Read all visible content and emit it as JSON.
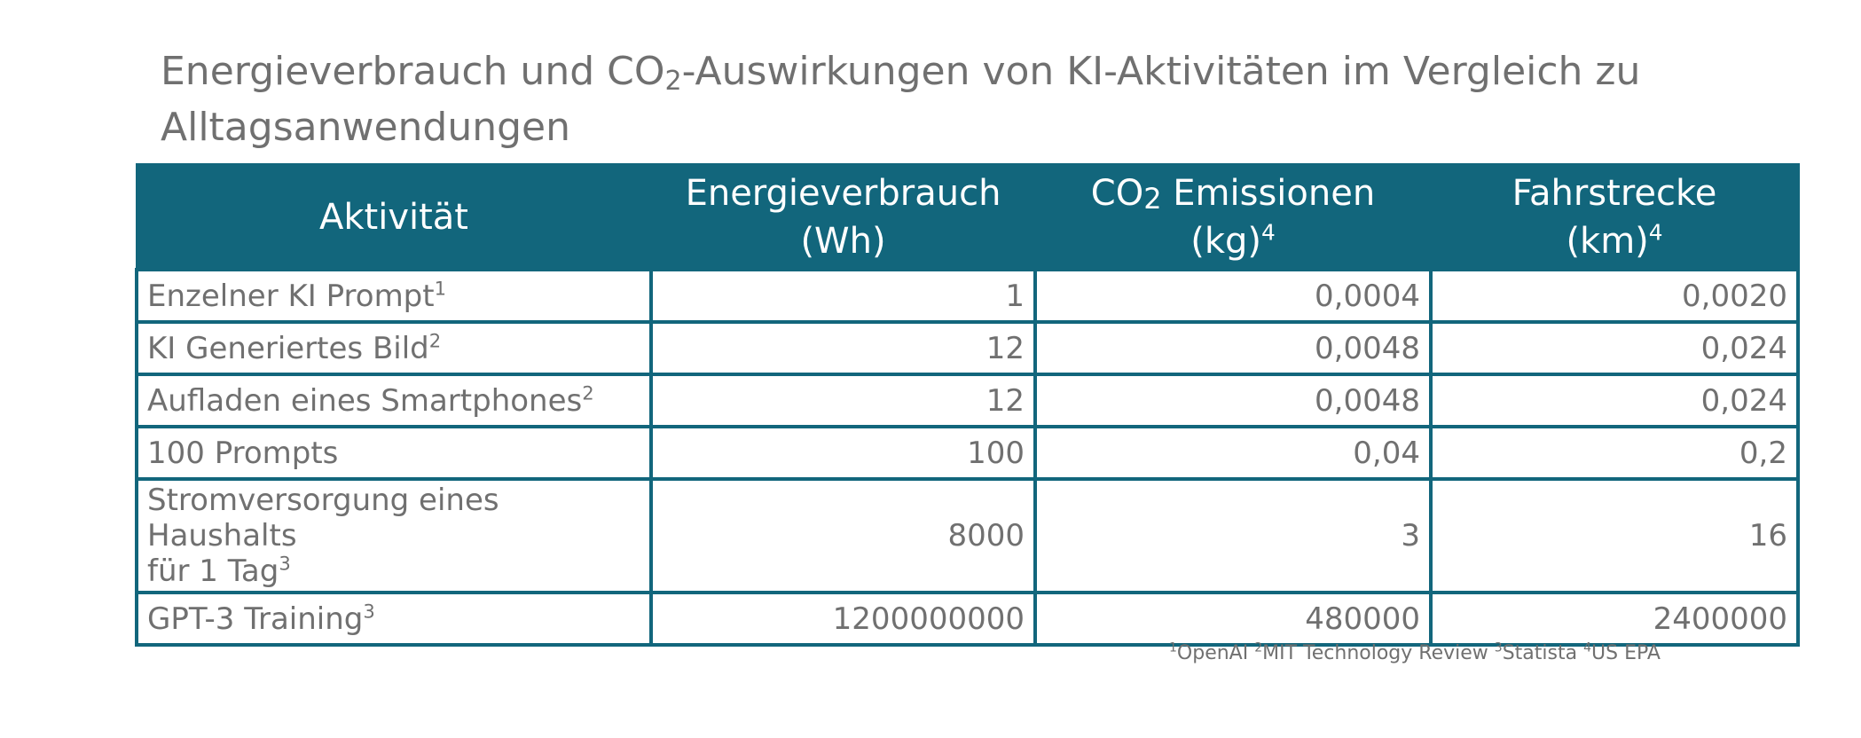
{
  "chart_data": {
    "type": "table",
    "title": {
      "pre": "Energieverbrauch und CO",
      "sub": "2",
      "post": "-Auswirkungen von KI-Aktivitäten im Vergleich zu Alltagsanwendungen"
    },
    "columns": [
      {
        "main": "Aktivität",
        "unit": "",
        "sub": "",
        "sup": ""
      },
      {
        "main": "Energieverbrauch",
        "unit": "(Wh)",
        "sub": "",
        "sup": ""
      },
      {
        "main": " Emissionen",
        "prefix": "CO",
        "sub": "2",
        "unit": "(kg)",
        "sup": "4"
      },
      {
        "main": "Fahrstrecke",
        "unit": "(km)",
        "sub": "",
        "sup": "4"
      }
    ],
    "rows": [
      {
        "activity": "Enzelner KI Prompt",
        "ref": "1",
        "energy_wh": "1",
        "co2_kg": "0,0004",
        "distance_km": "0,0020"
      },
      {
        "activity": "KI Generiertes Bild",
        "ref": "2",
        "energy_wh": "12",
        "co2_kg": "0,0048",
        "distance_km": "0,024"
      },
      {
        "activity": "Aufladen eines Smartphones",
        "ref": "2",
        "energy_wh": "12",
        "co2_kg": "0,0048",
        "distance_km": "0,024"
      },
      {
        "activity": "100 Prompts",
        "ref": "",
        "energy_wh": "100",
        "co2_kg": "0,04",
        "distance_km": "0,2"
      },
      {
        "activity_line1": "Stromversorgung eines Haushalts",
        "activity_line2": "für 1 Tag",
        "ref": "3",
        "energy_wh": "8000",
        "co2_kg": "3",
        "distance_km": "16"
      },
      {
        "activity": "GPT-3 Training",
        "ref": "3",
        "energy_wh": "1200000000",
        "co2_kg": "480000",
        "distance_km": "2400000"
      }
    ],
    "sources": [
      {
        "num": "1",
        "name": "OpenAI"
      },
      {
        "num": "2",
        "name": "MIT Technology Review"
      },
      {
        "num": "3",
        "name": "Statista"
      },
      {
        "num": "4",
        "name": "US EPA"
      }
    ],
    "colors": {
      "header_bg": "#12667c",
      "header_text": "#ffffff",
      "body_text": "#707070",
      "border": "#12667c"
    }
  }
}
